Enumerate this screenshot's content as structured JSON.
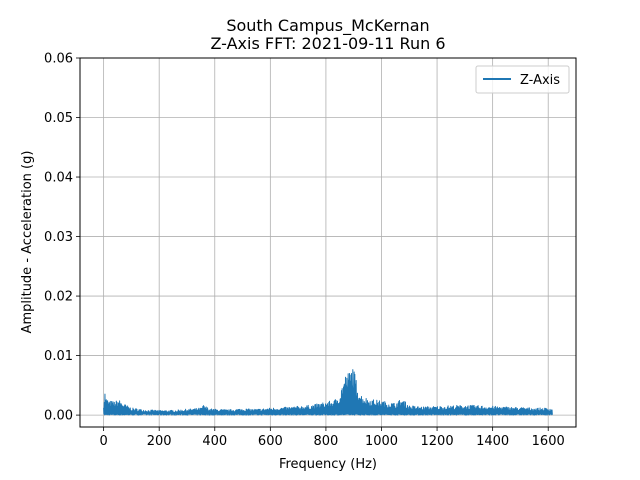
{
  "chart_data": {
    "type": "line",
    "title_line1": "South Campus_McKernan",
    "title_line2": "Z-Axis FFT: 2021-09-11 Run 6",
    "xlabel": "Frequency (Hz)",
    "ylabel": "Amplitude - Acceleration (g)",
    "xlim": [
      -85,
      1700
    ],
    "ylim": [
      -0.002,
      0.06
    ],
    "xticks": [
      0,
      200,
      400,
      600,
      800,
      1000,
      1200,
      1400,
      1600
    ],
    "xtick_labels": [
      "0",
      "200",
      "400",
      "600",
      "800",
      "1000",
      "1200",
      "1400",
      "1600"
    ],
    "yticks": [
      0.0,
      0.01,
      0.02,
      0.03,
      0.04,
      0.05,
      0.06
    ],
    "ytick_labels": [
      "0.00",
      "0.01",
      "0.02",
      "0.03",
      "0.04",
      "0.05",
      "0.06"
    ],
    "grid": true,
    "legend_position": "top-right",
    "series": [
      {
        "name": "Z-Axis",
        "color": "#1f77b4",
        "x": [
          0,
          5,
          10,
          20,
          40,
          55,
          70,
          100,
          150,
          200,
          250,
          300,
          350,
          360,
          380,
          400,
          450,
          500,
          550,
          600,
          650,
          700,
          750,
          800,
          830,
          850,
          860,
          870,
          880,
          890,
          895,
          900,
          910,
          920,
          930,
          950,
          1000,
          1050,
          1070,
          1080,
          1100,
          1150,
          1200,
          1250,
          1300,
          1350,
          1400,
          1450,
          1500,
          1550,
          1600,
          1615
        ],
        "values": [
          0.0022,
          0.0041,
          0.0028,
          0.0024,
          0.0023,
          0.0026,
          0.002,
          0.0012,
          0.0009,
          0.0008,
          0.0008,
          0.001,
          0.0012,
          0.0017,
          0.0011,
          0.001,
          0.0009,
          0.0011,
          0.001,
          0.0012,
          0.0013,
          0.0015,
          0.0017,
          0.0022,
          0.0025,
          0.0035,
          0.0055,
          0.0068,
          0.0072,
          0.0075,
          0.009,
          0.0078,
          0.0058,
          0.004,
          0.0033,
          0.0028,
          0.0024,
          0.002,
          0.0027,
          0.0025,
          0.0016,
          0.0014,
          0.0015,
          0.0016,
          0.0017,
          0.0016,
          0.0015,
          0.0014,
          0.0013,
          0.0012,
          0.0012,
          0.0011
        ],
        "floor": 0.0002
      }
    ]
  }
}
